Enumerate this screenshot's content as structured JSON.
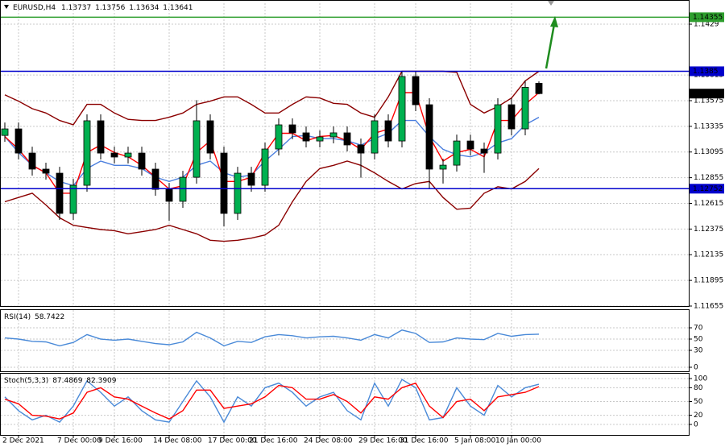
{
  "chart_data": [
    {
      "type": "candlestick",
      "symbol": "EURUSD,H4",
      "categories": [
        null,
        "2 Dec 2021",
        null,
        null,
        null,
        "7 Dec 00:00",
        null,
        null,
        "9 Dec 16:00",
        null,
        null,
        null,
        "14 Dec 08:00",
        null,
        null,
        null,
        "17 Dec 00:00",
        null,
        null,
        "21 Dec 16:00",
        null,
        null,
        null,
        "24 Dec 08:00",
        null,
        null,
        null,
        "29 Dec 16:00",
        null,
        null,
        "31 Dec 16:00",
        null,
        null,
        null,
        "5 Jan 08:00",
        null,
        null,
        "10 Jan 00:00",
        null,
        null
      ],
      "open": [
        1.1325,
        1.13311,
        1.13085,
        1.12935,
        1.12897,
        1.12521,
        1.12784,
        1.13387,
        1.13085,
        1.13048,
        1.13085,
        1.12935,
        1.12746,
        1.12634,
        1.12859,
        1.13387,
        1.13085,
        1.12521,
        1.12897,
        1.12784,
        1.13123,
        1.13349,
        1.13274,
        1.13198,
        1.13236,
        1.13274,
        1.13161,
        1.13085,
        1.13387,
        1.13198,
        1.13801,
        1.13537,
        1.12935,
        1.12972,
        1.13198,
        1.13123,
        1.13085,
        1.13537,
        1.13311,
        1.13737
      ],
      "high": [
        1.13371,
        1.13371,
        1.13145,
        1.12995,
        1.12957,
        1.12844,
        1.13447,
        1.13447,
        1.13145,
        1.13145,
        1.13145,
        1.12995,
        1.12806,
        1.12919,
        1.1358,
        1.13447,
        1.13145,
        1.12957,
        1.12957,
        1.13183,
        1.13409,
        1.13409,
        1.13334,
        1.13296,
        1.13334,
        1.13334,
        1.13221,
        1.13447,
        1.13447,
        1.1385,
        1.1385,
        1.13597,
        1.13032,
        1.13258,
        1.13258,
        1.13183,
        1.13597,
        1.13597,
        1.1376,
        1.13756
      ],
      "low": [
        1.1319,
        1.13025,
        1.12875,
        1.12837,
        1.12461,
        1.12461,
        1.12724,
        1.13025,
        1.12988,
        1.12988,
        1.12875,
        1.12686,
        1.1245,
        1.12574,
        1.12799,
        1.13025,
        1.124,
        1.12461,
        1.12724,
        1.12724,
        1.13063,
        1.13214,
        1.13138,
        1.13138,
        1.13176,
        1.13101,
        1.12855,
        1.13025,
        1.13138,
        1.13138,
        1.13477,
        1.12752,
        1.128,
        1.12912,
        1.13063,
        1.129,
        1.13025,
        1.13251,
        1.13251,
        1.13634
      ],
      "close": [
        1.13311,
        1.13085,
        1.12935,
        1.12897,
        1.12521,
        1.12784,
        1.13387,
        1.13085,
        1.13048,
        1.13085,
        1.12935,
        1.12746,
        1.12634,
        1.12859,
        1.13387,
        1.13085,
        1.12521,
        1.12897,
        1.12784,
        1.13123,
        1.13349,
        1.13274,
        1.13198,
        1.13236,
        1.13274,
        1.13161,
        1.13085,
        1.13387,
        1.13198,
        1.13801,
        1.13537,
        1.12935,
        1.12972,
        1.13198,
        1.13123,
        1.13085,
        1.13537,
        1.13311,
        1.137,
        1.13641
      ],
      "up_color": "#00b050",
      "down_color": "#000000",
      "overlays": [
        {
          "color": "#8b0000",
          "values": [
            1.1363,
            1.1357,
            1.135,
            1.1346,
            1.1339,
            1.1335,
            1.1354,
            1.1354,
            1.1346,
            1.134,
            1.1339,
            1.1339,
            1.1342,
            1.1346,
            1.1354,
            1.1357,
            1.1361,
            1.1361,
            1.1354,
            1.1346,
            1.1346,
            1.1354,
            1.1361,
            1.136,
            1.1355,
            1.1354,
            1.1346,
            1.1342,
            1.1361,
            1.1385,
            1.1385,
            1.1385,
            1.1385,
            1.1384,
            1.1354,
            1.1346,
            1.1352,
            1.136,
            1.1376,
            1.1385
          ]
        },
        {
          "color": "#8b0000",
          "values": [
            1.1263,
            1.1267,
            1.1271,
            1.126,
            1.1248,
            1.1241,
            1.1239,
            1.1237,
            1.1236,
            1.1233,
            1.1235,
            1.1237,
            1.1241,
            1.1237,
            1.1233,
            1.1227,
            1.1226,
            1.1227,
            1.1229,
            1.1232,
            1.1241,
            1.1263,
            1.1282,
            1.1294,
            1.1297,
            1.1301,
            1.1297,
            1.129,
            1.1282,
            1.1275,
            1.128,
            1.1282,
            1.1267,
            1.1256,
            1.1257,
            1.1271,
            1.1277,
            1.1275,
            1.1282,
            1.1294
          ]
        },
        {
          "color": "#4a7ede",
          "values": [
            1.1324,
            1.1309,
            1.1297,
            1.129,
            1.1282,
            1.1278,
            1.1294,
            1.1301,
            1.1297,
            1.1297,
            1.1294,
            1.1286,
            1.1282,
            1.1286,
            1.1297,
            1.1301,
            1.129,
            1.1286,
            1.1288,
            1.1301,
            1.1312,
            1.1324,
            1.1325,
            1.1322,
            1.1322,
            1.132,
            1.1316,
            1.1322,
            1.1327,
            1.1339,
            1.1339,
            1.1324,
            1.1312,
            1.1307,
            1.1305,
            1.1309,
            1.1318,
            1.1322,
            1.1335,
            1.1342
          ]
        },
        {
          "color": "#ff0000",
          "values": [
            1.1324,
            1.1312,
            1.1297,
            1.129,
            1.1271,
            1.1271,
            1.1309,
            1.1316,
            1.1309,
            1.1305,
            1.1297,
            1.1286,
            1.1275,
            1.1278,
            1.1309,
            1.132,
            1.1282,
            1.1282,
            1.1286,
            1.1309,
            1.1327,
            1.1327,
            1.132,
            1.1324,
            1.1325,
            1.132,
            1.1312,
            1.1327,
            1.1331,
            1.1365,
            1.1365,
            1.1324,
            1.1301,
            1.1309,
            1.1312,
            1.1305,
            1.1339,
            1.1339,
            1.1354,
            1.1365
          ]
        }
      ],
      "levels": [
        {
          "value": 1.14355,
          "color": "#2e9e2e"
        },
        {
          "value": 1.1385,
          "color": "#0000cc"
        },
        {
          "value": 1.12752,
          "color": "#0000cc"
        }
      ],
      "ylim": [
        1.11655,
        1.14516
      ],
      "yticks": [
        1.11655,
        1.11895,
        1.12135,
        1.12375,
        1.12615,
        1.12855,
        1.13095,
        1.13335,
        1.13575,
        1.13815,
        1.1429
      ],
      "grid": true
    },
    {
      "type": "line",
      "label": "RSI(14)",
      "series": [
        {
          "color": "#4a8ad8",
          "values": [
            52,
            50,
            46,
            45,
            38,
            44,
            58,
            50,
            48,
            50,
            46,
            42,
            40,
            45,
            62,
            52,
            38,
            46,
            44,
            54,
            58,
            56,
            52,
            54,
            55,
            52,
            48,
            58,
            52,
            66,
            60,
            44,
            45,
            52,
            50,
            49,
            60,
            55,
            58,
            58.7422
          ]
        }
      ],
      "ylim": [
        0,
        100
      ],
      "yticks": [
        0,
        30,
        50,
        70
      ],
      "grid": true
    },
    {
      "type": "line",
      "label": "Stoch(5,3,3)",
      "series": [
        {
          "color": "#4a8ad8",
          "values": [
            60,
            30,
            10,
            20,
            5,
            40,
            95,
            70,
            40,
            60,
            30,
            10,
            5,
            50,
            95,
            60,
            5,
            60,
            40,
            80,
            90,
            70,
            40,
            60,
            70,
            30,
            10,
            90,
            40,
            98,
            80,
            10,
            15,
            80,
            40,
            20,
            85,
            60,
            80,
            87.4869
          ]
        },
        {
          "color": "#ff0000",
          "values": [
            55,
            45,
            20,
            18,
            12,
            25,
            70,
            80,
            60,
            55,
            40,
            25,
            12,
            30,
            75,
            75,
            35,
            40,
            45,
            60,
            85,
            80,
            55,
            55,
            65,
            50,
            25,
            60,
            55,
            80,
            90,
            40,
            15,
            50,
            55,
            30,
            60,
            65,
            70,
            82.3909
          ]
        }
      ],
      "ylim": [
        0,
        100
      ],
      "yticks": [
        0,
        20,
        50,
        80,
        100
      ],
      "grid": true
    }
  ]
}
